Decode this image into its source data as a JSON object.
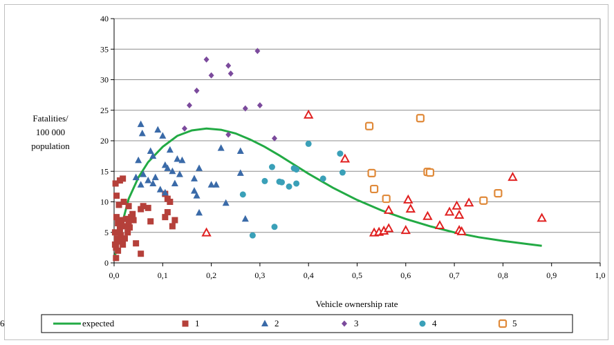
{
  "chart_data": {
    "type": "scatter",
    "title": "",
    "xlabel": "Vehicle ownership rate",
    "ylabel": "Fatalities/\n100 000\npopulation",
    "xlim": [
      0,
      1
    ],
    "ylim": [
      0,
      40
    ],
    "x_ticks": [
      "0,0",
      "0,1",
      "0,2",
      "0,3",
      "0,4",
      "0,5",
      "0,6",
      "0,7",
      "0,8",
      "0,9",
      "1,0"
    ],
    "y_ticks": [
      "0",
      "5",
      "10",
      "15",
      "20",
      "25",
      "30",
      "35",
      "40"
    ],
    "grid": "horizontal",
    "legend_position": "bottom",
    "series": [
      {
        "name": "expected",
        "marker": "line",
        "color": "#22aa44",
        "points": [
          [
            0.0,
            0.5
          ],
          [
            0.01,
            4
          ],
          [
            0.02,
            7.5
          ],
          [
            0.03,
            10.5
          ],
          [
            0.05,
            14
          ],
          [
            0.07,
            16.5
          ],
          [
            0.1,
            19
          ],
          [
            0.13,
            20.8
          ],
          [
            0.16,
            21.7
          ],
          [
            0.19,
            22
          ],
          [
            0.22,
            21.8
          ],
          [
            0.25,
            21.2
          ],
          [
            0.28,
            20.2
          ],
          [
            0.31,
            19
          ],
          [
            0.34,
            17.6
          ],
          [
            0.37,
            16.1
          ],
          [
            0.4,
            14.6
          ],
          [
            0.45,
            12.3
          ],
          [
            0.5,
            10.3
          ],
          [
            0.55,
            8.6
          ],
          [
            0.6,
            7.2
          ],
          [
            0.65,
            6
          ],
          [
            0.7,
            5
          ],
          [
            0.75,
            4.2
          ],
          [
            0.8,
            3.6
          ],
          [
            0.85,
            3.1
          ],
          [
            0.88,
            2.8
          ]
        ]
      },
      {
        "name": "1",
        "marker": "square",
        "color": "#b5403a",
        "points": [
          [
            0.003,
            13
          ],
          [
            0.012,
            13.5
          ],
          [
            0.018,
            13.8
          ],
          [
            0.005,
            11
          ],
          [
            0.01,
            9.5
          ],
          [
            0.02,
            10
          ],
          [
            0.03,
            9.3
          ],
          [
            0.005,
            7.5
          ],
          [
            0.008,
            6.5
          ],
          [
            0.012,
            5.5
          ],
          [
            0.015,
            7
          ],
          [
            0.02,
            6
          ],
          [
            0.025,
            7.2
          ],
          [
            0.03,
            6.5
          ],
          [
            0.035,
            7.5
          ],
          [
            0.038,
            8
          ],
          [
            0.04,
            7
          ],
          [
            0.002,
            5
          ],
          [
            0.006,
            4
          ],
          [
            0.01,
            3.5
          ],
          [
            0.014,
            4.5
          ],
          [
            0.018,
            3
          ],
          [
            0.022,
            4
          ],
          [
            0.028,
            5
          ],
          [
            0.032,
            5.8
          ],
          [
            0.002,
            3
          ],
          [
            0.004,
            2.5
          ],
          [
            0.008,
            2
          ],
          [
            0.004,
            0.8
          ],
          [
            0.045,
            3.2
          ],
          [
            0.055,
            1.5
          ],
          [
            0.055,
            8.8
          ],
          [
            0.06,
            9.3
          ],
          [
            0.07,
            9
          ],
          [
            0.075,
            6.8
          ],
          [
            0.105,
            11.3
          ],
          [
            0.11,
            10.5
          ],
          [
            0.115,
            10
          ],
          [
            0.11,
            8.3
          ],
          [
            0.105,
            7.5
          ],
          [
            0.12,
            6
          ],
          [
            0.125,
            7
          ]
        ]
      },
      {
        "name": "2",
        "marker": "triangle",
        "color": "#3a6aa8",
        "points": [
          [
            0.055,
            22.7
          ],
          [
            0.058,
            21.2
          ],
          [
            0.09,
            21.8
          ],
          [
            0.1,
            20.8
          ],
          [
            0.075,
            18.3
          ],
          [
            0.08,
            17.5
          ],
          [
            0.05,
            16.8
          ],
          [
            0.085,
            14
          ],
          [
            0.105,
            16
          ],
          [
            0.11,
            15.5
          ],
          [
            0.115,
            18.5
          ],
          [
            0.12,
            15
          ],
          [
            0.13,
            17
          ],
          [
            0.14,
            16.8
          ],
          [
            0.045,
            14
          ],
          [
            0.06,
            14.5
          ],
          [
            0.07,
            13.5
          ],
          [
            0.08,
            13
          ],
          [
            0.055,
            12.8
          ],
          [
            0.095,
            12
          ],
          [
            0.105,
            11.5
          ],
          [
            0.125,
            13
          ],
          [
            0.135,
            14.5
          ],
          [
            0.165,
            13.8
          ],
          [
            0.175,
            15.5
          ],
          [
            0.165,
            11.8
          ],
          [
            0.17,
            11
          ],
          [
            0.2,
            12.8
          ],
          [
            0.21,
            12.8
          ],
          [
            0.22,
            18.8
          ],
          [
            0.23,
            9.8
          ],
          [
            0.175,
            8.2
          ],
          [
            0.26,
            18.3
          ],
          [
            0.26,
            14.7
          ],
          [
            0.27,
            7.2
          ]
        ]
      },
      {
        "name": "3",
        "marker": "diamond",
        "color": "#7b4a9c",
        "points": [
          [
            0.19,
            33.3
          ],
          [
            0.2,
            30.7
          ],
          [
            0.235,
            32.3
          ],
          [
            0.24,
            31
          ],
          [
            0.295,
            34.7
          ],
          [
            0.17,
            28.2
          ],
          [
            0.155,
            25.8
          ],
          [
            0.27,
            25.3
          ],
          [
            0.3,
            25.8
          ],
          [
            0.145,
            22
          ],
          [
            0.235,
            21
          ],
          [
            0.33,
            20.4
          ]
        ]
      },
      {
        "name": "4",
        "marker": "circle",
        "color": "#3aa0b8",
        "points": [
          [
            0.4,
            19.5
          ],
          [
            0.465,
            17.9
          ],
          [
            0.325,
            15.7
          ],
          [
            0.37,
            15.5
          ],
          [
            0.375,
            15.3
          ],
          [
            0.47,
            14.8
          ],
          [
            0.43,
            13.8
          ],
          [
            0.31,
            13.4
          ],
          [
            0.34,
            13.3
          ],
          [
            0.345,
            13.2
          ],
          [
            0.375,
            13
          ],
          [
            0.36,
            12.5
          ],
          [
            0.265,
            11.2
          ],
          [
            0.33,
            5.9
          ],
          [
            0.285,
            4.5
          ]
        ]
      },
      {
        "name": "5",
        "marker": "open-square",
        "color": "#e08a3a",
        "points": [
          [
            0.525,
            22.4
          ],
          [
            0.63,
            23.7
          ],
          [
            0.53,
            14.7
          ],
          [
            0.645,
            14.9
          ],
          [
            0.65,
            14.8
          ],
          [
            0.535,
            12.1
          ],
          [
            0.56,
            10.5
          ],
          [
            0.76,
            10.2
          ],
          [
            0.79,
            11.4
          ]
        ]
      },
      {
        "name": "6",
        "marker": "open-triangle",
        "color": "#e02020",
        "points": [
          [
            0.4,
            24.2
          ],
          [
            0.475,
            17
          ],
          [
            0.19,
            4.9
          ],
          [
            0.535,
            4.9
          ],
          [
            0.545,
            5
          ],
          [
            0.555,
            5.2
          ],
          [
            0.565,
            5.6
          ],
          [
            0.565,
            8.6
          ],
          [
            0.6,
            5.3
          ],
          [
            0.605,
            10.3
          ],
          [
            0.61,
            8.8
          ],
          [
            0.645,
            7.6
          ],
          [
            0.67,
            6.1
          ],
          [
            0.69,
            8.3
          ],
          [
            0.705,
            9.3
          ],
          [
            0.71,
            7.8
          ],
          [
            0.71,
            5.3
          ],
          [
            0.715,
            5.1
          ],
          [
            0.73,
            9.8
          ],
          [
            0.82,
            14
          ],
          [
            0.88,
            7.3
          ]
        ]
      }
    ]
  }
}
